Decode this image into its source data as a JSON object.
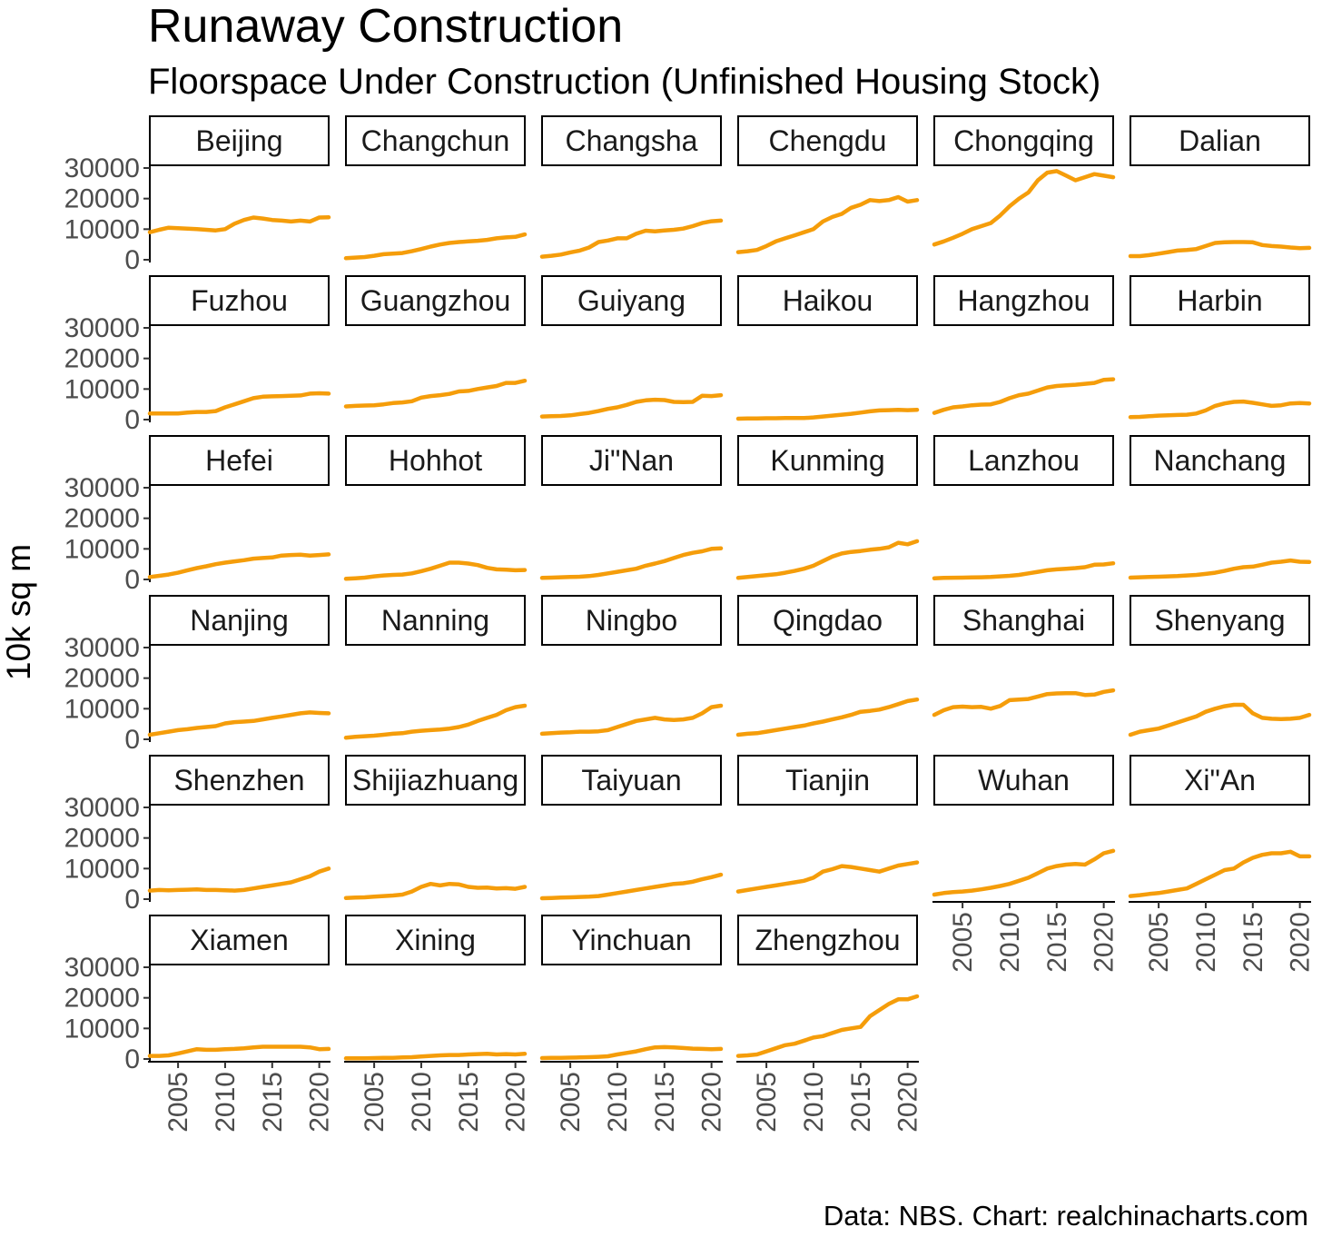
{
  "title": "Runaway Construction",
  "subtitle": "Floorspace Under Construction (Unfinished Housing Stock)",
  "caption": "Data: NBS. Chart: realchinacharts.com",
  "colors": {
    "line": "#f59d0a"
  },
  "chart_data": {
    "type": "line",
    "layout": "facets",
    "ylabel": "10k sq m",
    "xlabel": "",
    "ylim": [
      0,
      30000
    ],
    "xlim": [
      2002,
      2021
    ],
    "yticks": [
      0,
      10000,
      20000,
      30000
    ],
    "xticks": [
      2005,
      2010,
      2015,
      2020
    ],
    "grid": false,
    "x": [
      2002,
      2003,
      2004,
      2005,
      2006,
      2007,
      2008,
      2009,
      2010,
      2011,
      2012,
      2013,
      2014,
      2015,
      2016,
      2017,
      2018,
      2019,
      2020,
      2021
    ],
    "series": [
      {
        "name": "Beijing",
        "values": [
          9000,
          9800,
          10500,
          10300,
          10200,
          10000,
          9800,
          9600,
          10000,
          11800,
          13000,
          13800,
          13500,
          13000,
          12800,
          12500,
          12800,
          12500,
          13800,
          13900
        ]
      },
      {
        "name": "Changchun",
        "values": [
          500,
          700,
          900,
          1300,
          1800,
          2000,
          2200,
          2800,
          3500,
          4300,
          5000,
          5500,
          5800,
          6000,
          6200,
          6500,
          7000,
          7300,
          7500,
          8300
        ]
      },
      {
        "name": "Changsha",
        "values": [
          1000,
          1300,
          1700,
          2400,
          3000,
          4000,
          5800,
          6300,
          7000,
          7000,
          8500,
          9500,
          9300,
          9600,
          9800,
          10200,
          11000,
          12000,
          12600,
          12800
        ]
      },
      {
        "name": "Chengdu",
        "values": [
          2500,
          2800,
          3200,
          4500,
          6000,
          7000,
          8000,
          9000,
          10000,
          12500,
          14000,
          15000,
          17000,
          18000,
          19500,
          19200,
          19500,
          20500,
          19000,
          19500
        ]
      },
      {
        "name": "Chongqing",
        "values": [
          5000,
          6000,
          7200,
          8500,
          10000,
          11000,
          12000,
          14500,
          17500,
          20000,
          22000,
          26000,
          28500,
          29000,
          27500,
          26000,
          27000,
          28000,
          27500,
          27000
        ]
      },
      {
        "name": "Dalian",
        "values": [
          1200,
          1200,
          1500,
          2000,
          2500,
          3000,
          3200,
          3500,
          4500,
          5500,
          5700,
          5800,
          5800,
          5700,
          4800,
          4500,
          4300,
          4000,
          3800,
          3900
        ]
      },
      {
        "name": "Fuzhou",
        "values": [
          2000,
          2000,
          2000,
          2000,
          2300,
          2500,
          2500,
          2800,
          4000,
          5000,
          6000,
          7000,
          7500,
          7600,
          7700,
          7800,
          7900,
          8500,
          8600,
          8500
        ]
      },
      {
        "name": "Guangzhou",
        "values": [
          4300,
          4500,
          4600,
          4700,
          5000,
          5400,
          5600,
          6000,
          7200,
          7700,
          8000,
          8400,
          9200,
          9400,
          10000,
          10500,
          11000,
          12000,
          12000,
          12700
        ]
      },
      {
        "name": "Guiyang",
        "values": [
          1000,
          1100,
          1200,
          1400,
          1800,
          2200,
          2800,
          3500,
          4000,
          4800,
          5800,
          6300,
          6500,
          6400,
          5800,
          5700,
          5800,
          7800,
          7700,
          8000
        ]
      },
      {
        "name": "Haikou",
        "values": [
          300,
          350,
          400,
          450,
          450,
          500,
          500,
          500,
          700,
          1000,
          1300,
          1600,
          1900,
          2300,
          2700,
          3000,
          3100,
          3200,
          3100,
          3200
        ]
      },
      {
        "name": "Hangzhou",
        "values": [
          2200,
          3200,
          4000,
          4300,
          4700,
          4900,
          5000,
          5800,
          7000,
          8000,
          8500,
          9500,
          10500,
          11000,
          11200,
          11400,
          11700,
          12000,
          13000,
          13200
        ]
      },
      {
        "name": "Harbin",
        "values": [
          800,
          900,
          1100,
          1300,
          1400,
          1500,
          1600,
          2000,
          3000,
          4500,
          5300,
          5800,
          5900,
          5500,
          5000,
          4500,
          4700,
          5300,
          5400,
          5300
        ]
      },
      {
        "name": "Hefei",
        "values": [
          800,
          1200,
          1600,
          2200,
          3000,
          3700,
          4300,
          5000,
          5500,
          5900,
          6300,
          6800,
          7000,
          7200,
          7800,
          8000,
          8100,
          7800,
          8000,
          8200
        ]
      },
      {
        "name": "Hohhot",
        "values": [
          200,
          400,
          600,
          1000,
          1300,
          1500,
          1600,
          2000,
          2700,
          3500,
          4500,
          5500,
          5500,
          5200,
          4700,
          3800,
          3300,
          3200,
          3000,
          3100
        ]
      },
      {
        "name": "Ji\"Nan",
        "values": [
          500,
          600,
          700,
          800,
          900,
          1100,
          1500,
          2000,
          2500,
          3000,
          3500,
          4500,
          5200,
          6000,
          7000,
          8000,
          8700,
          9200,
          10000,
          10200
        ]
      },
      {
        "name": "Kunming",
        "values": [
          500,
          800,
          1100,
          1400,
          1700,
          2200,
          2800,
          3500,
          4500,
          6000,
          7500,
          8500,
          9000,
          9300,
          9700,
          10000,
          10500,
          12000,
          11500,
          12500
        ]
      },
      {
        "name": "Lanzhou",
        "values": [
          400,
          500,
          550,
          600,
          650,
          700,
          800,
          1000,
          1200,
          1500,
          2000,
          2500,
          3000,
          3300,
          3500,
          3700,
          4000,
          4800,
          4900,
          5300
        ]
      },
      {
        "name": "Nanchang",
        "values": [
          600,
          700,
          800,
          900,
          1000,
          1100,
          1300,
          1500,
          1800,
          2200,
          2800,
          3500,
          4000,
          4200,
          4800,
          5500,
          5800,
          6200,
          5800,
          5700
        ]
      },
      {
        "name": "Nanjing",
        "values": [
          1500,
          2000,
          2500,
          3000,
          3300,
          3700,
          4000,
          4300,
          5200,
          5600,
          5800,
          6000,
          6500,
          7000,
          7500,
          8000,
          8500,
          8800,
          8600,
          8500
        ]
      },
      {
        "name": "Nanning",
        "values": [
          500,
          800,
          1000,
          1200,
          1500,
          1800,
          2000,
          2500,
          2800,
          3000,
          3200,
          3500,
          4000,
          4800,
          6000,
          7000,
          8000,
          9500,
          10500,
          11000
        ]
      },
      {
        "name": "Ningbo",
        "values": [
          1800,
          2000,
          2200,
          2300,
          2500,
          2500,
          2600,
          3000,
          4000,
          5000,
          6000,
          6500,
          7000,
          6500,
          6300,
          6500,
          7000,
          8500,
          10500,
          11000
        ]
      },
      {
        "name": "Qingdao",
        "values": [
          1500,
          1800,
          2000,
          2500,
          3000,
          3500,
          4000,
          4500,
          5200,
          5800,
          6500,
          7200,
          8000,
          9000,
          9300,
          9700,
          10500,
          11500,
          12500,
          13000
        ]
      },
      {
        "name": "Shanghai",
        "values": [
          8000,
          9500,
          10500,
          10700,
          10500,
          10600,
          10000,
          10900,
          12800,
          13000,
          13200,
          14000,
          14800,
          15000,
          15100,
          15100,
          14500,
          14600,
          15500,
          16000
        ]
      },
      {
        "name": "Shenyang",
        "values": [
          1500,
          2500,
          3000,
          3500,
          4500,
          5500,
          6500,
          7500,
          9000,
          10000,
          10800,
          11300,
          11300,
          8500,
          7000,
          6700,
          6600,
          6700,
          7000,
          8000
        ]
      },
      {
        "name": "Shenzhen",
        "values": [
          2800,
          3000,
          2900,
          3000,
          3100,
          3200,
          3000,
          3000,
          2900,
          2800,
          3000,
          3500,
          4000,
          4500,
          5000,
          5500,
          6500,
          7500,
          9000,
          10000
        ]
      },
      {
        "name": "Shijiazhuang",
        "values": [
          400,
          500,
          600,
          800,
          1000,
          1200,
          1500,
          2500,
          4000,
          5000,
          4500,
          5000,
          4800,
          4000,
          3700,
          3800,
          3500,
          3600,
          3400,
          4000
        ]
      },
      {
        "name": "Taiyuan",
        "values": [
          300,
          400,
          500,
          600,
          700,
          800,
          1000,
          1500,
          2000,
          2500,
          3000,
          3500,
          4000,
          4500,
          5000,
          5200,
          5700,
          6500,
          7200,
          8000
        ]
      },
      {
        "name": "Tianjin",
        "values": [
          2500,
          3000,
          3500,
          4000,
          4500,
          5000,
          5500,
          6000,
          7000,
          9000,
          9800,
          10800,
          10500,
          10000,
          9500,
          9000,
          10000,
          11000,
          11500,
          12000
        ]
      },
      {
        "name": "Wuhan",
        "values": [
          1500,
          2000,
          2300,
          2500,
          2800,
          3200,
          3700,
          4300,
          5000,
          6000,
          7000,
          8500,
          10000,
          10800,
          11300,
          11500,
          11300,
          13000,
          15000,
          15800
        ]
      },
      {
        "name": "Xi\"An",
        "values": [
          1000,
          1300,
          1700,
          2000,
          2500,
          3000,
          3500,
          5000,
          6500,
          8000,
          9500,
          10000,
          12000,
          13500,
          14500,
          15000,
          15000,
          15500,
          14000,
          14000
        ]
      },
      {
        "name": "Xiamen",
        "values": [
          1000,
          1000,
          1200,
          1800,
          2500,
          3200,
          3000,
          3000,
          3200,
          3300,
          3500,
          3800,
          4000,
          4000,
          4000,
          4000,
          4000,
          3800,
          3200,
          3300
        ]
      },
      {
        "name": "Xining",
        "values": [
          200,
          200,
          250,
          300,
          350,
          400,
          500,
          600,
          800,
          1000,
          1200,
          1300,
          1300,
          1500,
          1600,
          1700,
          1500,
          1600,
          1500,
          1700
        ]
      },
      {
        "name": "Yinchuan",
        "values": [
          300,
          350,
          400,
          450,
          500,
          600,
          700,
          900,
          1500,
          2000,
          2500,
          3200,
          3800,
          3900,
          3800,
          3600,
          3400,
          3300,
          3200,
          3300
        ]
      },
      {
        "name": "Zhengzhou",
        "values": [
          1000,
          1200,
          1500,
          2500,
          3500,
          4500,
          5000,
          6000,
          7000,
          7500,
          8500,
          9500,
          10000,
          10500,
          14000,
          16000,
          18000,
          19500,
          19500,
          20500
        ]
      }
    ]
  }
}
